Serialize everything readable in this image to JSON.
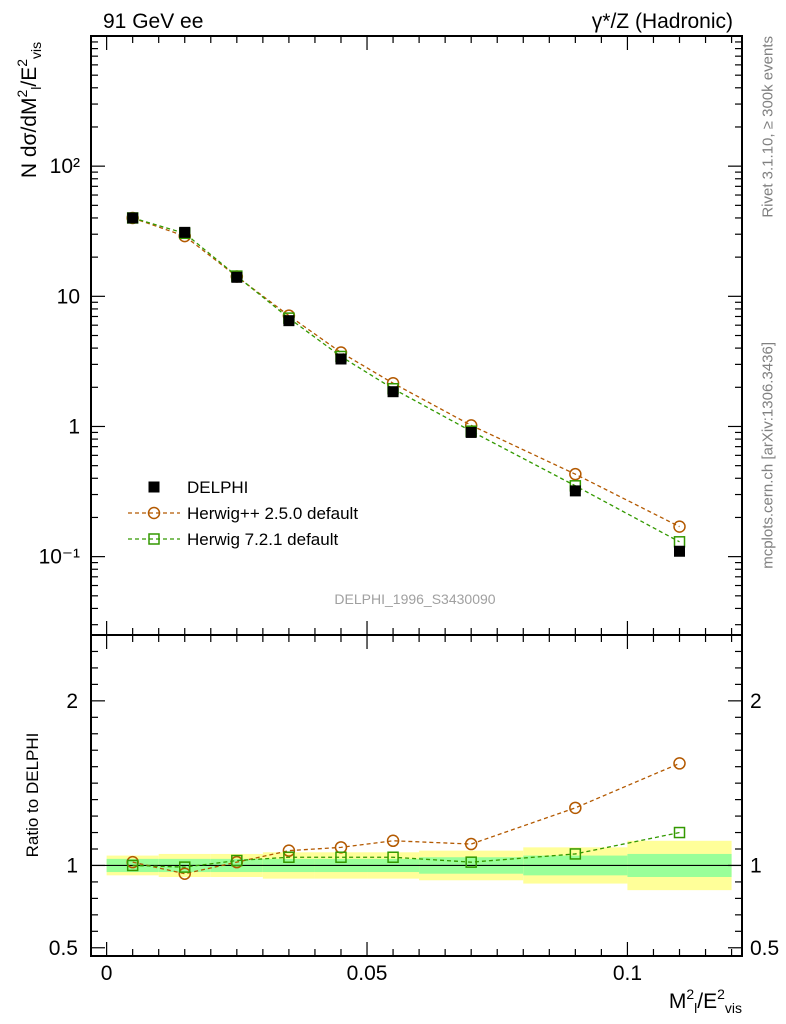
{
  "header": {
    "left_title": "91 GeV ee",
    "right_title": "γ*/Z (Hadronic)",
    "side_rivet": "Rivet 3.1.10, ≥ 300k events",
    "side_mcplots": "mcplots.cern.ch [arXiv:1306.3436]",
    "analysis_id": "DELPHI_1996_S3430090"
  },
  "legend": [
    {
      "label": "DELPHI",
      "color": "#000000",
      "marker": "filled-square"
    },
    {
      "label": "Herwig++ 2.5.0 default",
      "color": "#b35900",
      "marker": "open-circle"
    },
    {
      "label": "Herwig 7.2.1 default",
      "color": "#339900",
      "marker": "open-square"
    }
  ],
  "chart_data": [
    {
      "type": "scatter",
      "panel": "main",
      "ylabel": "N dσ/dM²l/E²vis",
      "yscale": "log",
      "ylim": [
        0.025,
        1000
      ],
      "xlim": [
        -0.003,
        0.122
      ],
      "ytick_labels": [
        "10⁻¹",
        "1",
        "10",
        "10²"
      ],
      "x": [
        0.005,
        0.015,
        0.025,
        0.035,
        0.045,
        0.055,
        0.07,
        0.09,
        0.11
      ],
      "series": [
        {
          "name": "DELPHI",
          "values": [
            40,
            31,
            14,
            6.5,
            3.3,
            1.85,
            0.9,
            0.32,
            0.11
          ]
        },
        {
          "name": "Herwig++ 2.5.0 default",
          "values": [
            40,
            29,
            14.2,
            7.1,
            3.7,
            2.15,
            1.02,
            0.43,
            0.17
          ]
        },
        {
          "name": "Herwig 7.2.1 default",
          "values": [
            40,
            30.5,
            14.3,
            6.8,
            3.45,
            1.95,
            0.92,
            0.35,
            0.13
          ]
        }
      ]
    },
    {
      "type": "line",
      "panel": "ratio",
      "ylabel": "Ratio to DELPHI",
      "xlabel": "M²l/E²vis",
      "ylim": [
        0.45,
        2.4
      ],
      "xlim": [
        -0.003,
        0.122
      ],
      "ytick_labels": [
        "0.5",
        "1",
        "2"
      ],
      "xtick_labels": [
        "0",
        "0.05",
        "0.1"
      ],
      "x": [
        0.005,
        0.015,
        0.025,
        0.035,
        0.045,
        0.055,
        0.07,
        0.09,
        0.11
      ],
      "bin_edges": [
        0,
        0.01,
        0.02,
        0.03,
        0.04,
        0.05,
        0.06,
        0.08,
        0.1,
        0.12
      ],
      "band_inner": [
        0.04,
        0.04,
        0.04,
        0.04,
        0.04,
        0.04,
        0.05,
        0.06,
        0.07
      ],
      "band_outer": [
        0.06,
        0.07,
        0.07,
        0.08,
        0.08,
        0.08,
        0.09,
        0.11,
        0.15
      ],
      "series": [
        {
          "name": "Herwig++ 2.5.0 default",
          "values": [
            1.02,
            0.95,
            1.02,
            1.09,
            1.11,
            1.15,
            1.13,
            1.35,
            1.62
          ]
        },
        {
          "name": "Herwig 7.2.1 default",
          "values": [
            1.0,
            0.99,
            1.03,
            1.05,
            1.05,
            1.05,
            1.02,
            1.07,
            1.2
          ]
        }
      ]
    }
  ]
}
